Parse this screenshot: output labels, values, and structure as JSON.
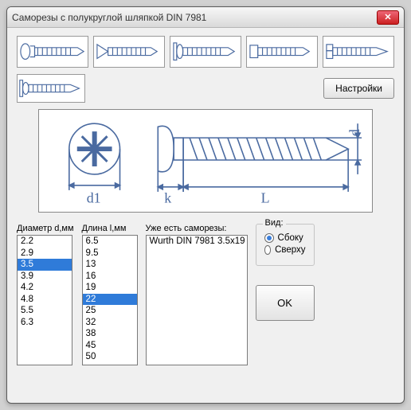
{
  "window": {
    "title": "Саморезы с полукруглой шляпкой DIN 7981",
    "close_glyph": "✕"
  },
  "buttons": {
    "settings": "Настройки",
    "ok": "OK"
  },
  "labels": {
    "diameter": "Диаметр d,мм",
    "length": "Длина l,мм",
    "have": "Уже есть саморезы:",
    "view_group": "Вид:",
    "side": "Сбоку",
    "top": "Сверху"
  },
  "lists": {
    "diameters": [
      "2.2",
      "2.9",
      "3.5",
      "3.9",
      "4.2",
      "4.8",
      "5.5",
      "6.3"
    ],
    "diameter_selected": "3.5",
    "lengths": [
      "6.5",
      "9.5",
      "13",
      "16",
      "19",
      "22",
      "25",
      "32",
      "38",
      "45",
      "50"
    ],
    "length_selected": "22",
    "have": [
      "Wurth DIN 7981 3.5x19"
    ]
  },
  "view": {
    "selected": "side"
  },
  "diagram": {
    "labels": {
      "d1": "d1",
      "k": "k",
      "L": "L",
      "d": "d"
    },
    "stroke": "#4a6aa0",
    "dim_color": "#4a6aa0"
  },
  "thumbs": {
    "stroke": "#4a6aa0"
  }
}
